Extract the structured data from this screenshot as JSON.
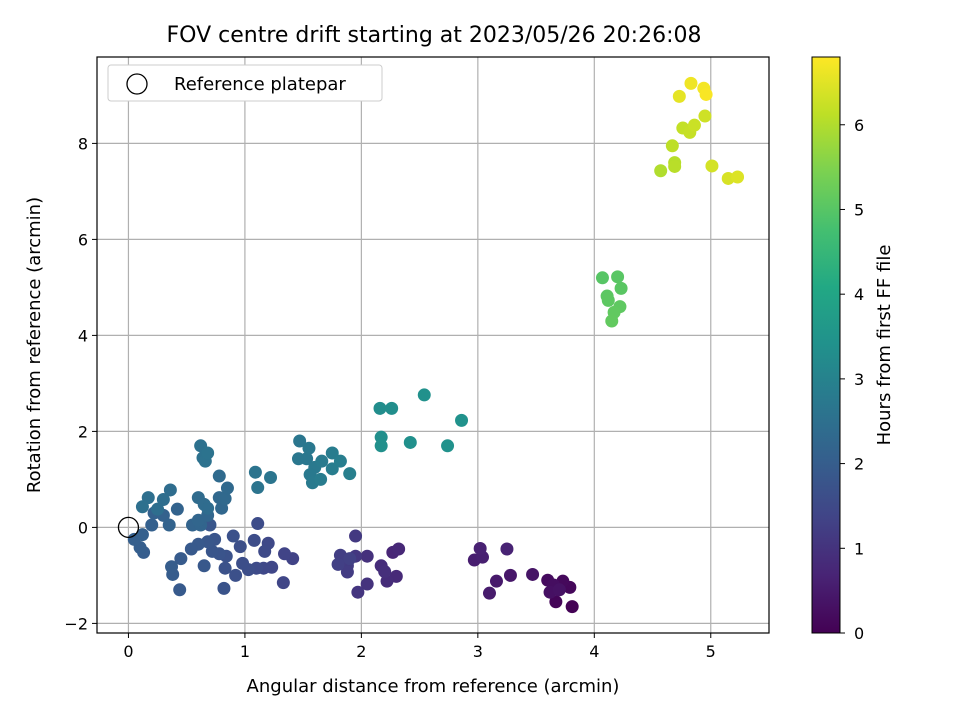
{
  "chart_data": {
    "type": "scatter",
    "title": "FOV centre drift starting at 2023/05/26 20:26:08",
    "xlabel": "Angular distance from reference (arcmin)",
    "ylabel": "Rotation from reference (arcmin)",
    "xlim": [
      -0.27,
      5.5
    ],
    "ylim": [
      -2.2,
      9.8
    ],
    "xticks": [
      0,
      1,
      2,
      3,
      4,
      5
    ],
    "yticks": [
      -2,
      0,
      2,
      4,
      6,
      8
    ],
    "grid": true,
    "legend": {
      "label": "Reference platepar",
      "position": "top-left"
    },
    "reference_point": {
      "x": 0,
      "y": 0
    },
    "colorbar": {
      "label": "Hours from first FF file",
      "colormap": "viridis",
      "range": [
        0,
        6.8
      ],
      "ticks": [
        0,
        1,
        2,
        3,
        4,
        5,
        6
      ]
    },
    "points": [
      {
        "x": 3.81,
        "y": -1.65,
        "c": 0.03
      },
      {
        "x": 3.67,
        "y": -1.55,
        "c": 0.08
      },
      {
        "x": 3.79,
        "y": -1.25,
        "c": 0.12
      },
      {
        "x": 3.73,
        "y": -1.12,
        "c": 0.15
      },
      {
        "x": 3.6,
        "y": -1.1,
        "c": 0.2
      },
      {
        "x": 3.65,
        "y": -1.2,
        "c": 0.25
      },
      {
        "x": 3.62,
        "y": -1.35,
        "c": 0.3
      },
      {
        "x": 3.7,
        "y": -1.3,
        "c": 0.33
      },
      {
        "x": 3.47,
        "y": -0.98,
        "c": 0.38
      },
      {
        "x": 3.28,
        "y": -1.0,
        "c": 0.43
      },
      {
        "x": 3.16,
        "y": -1.12,
        "c": 0.47
      },
      {
        "x": 3.1,
        "y": -1.37,
        "c": 0.5
      },
      {
        "x": 2.97,
        "y": -0.68,
        "c": 0.55
      },
      {
        "x": 3.04,
        "y": -0.62,
        "c": 0.58
      },
      {
        "x": 3.02,
        "y": -0.44,
        "c": 0.62
      },
      {
        "x": 3.25,
        "y": -0.45,
        "c": 0.66
      },
      {
        "x": 2.27,
        "y": -0.52,
        "c": 0.72
      },
      {
        "x": 2.32,
        "y": -0.45,
        "c": 0.76
      },
      {
        "x": 2.3,
        "y": -1.02,
        "c": 0.8
      },
      {
        "x": 2.22,
        "y": -1.12,
        "c": 0.84
      },
      {
        "x": 2.17,
        "y": -0.8,
        "c": 0.88
      },
      {
        "x": 2.2,
        "y": -0.92,
        "c": 0.92
      },
      {
        "x": 2.05,
        "y": -0.6,
        "c": 0.96
      },
      {
        "x": 2.05,
        "y": -1.18,
        "c": 1.0
      },
      {
        "x": 1.97,
        "y": -1.35,
        "c": 1.04
      },
      {
        "x": 1.95,
        "y": -0.6,
        "c": 1.08
      },
      {
        "x": 1.95,
        "y": -0.18,
        "c": 1.12
      },
      {
        "x": 1.88,
        "y": -0.8,
        "c": 1.16
      },
      {
        "x": 1.88,
        "y": -0.93,
        "c": 1.2
      },
      {
        "x": 1.82,
        "y": -0.58,
        "c": 1.24
      },
      {
        "x": 1.8,
        "y": -0.77,
        "c": 1.27
      },
      {
        "x": 1.9,
        "y": -0.65,
        "c": 1.3
      },
      {
        "x": 1.41,
        "y": -0.65,
        "c": 1.34
      },
      {
        "x": 1.34,
        "y": -0.55,
        "c": 1.37
      },
      {
        "x": 1.33,
        "y": -1.15,
        "c": 1.4
      },
      {
        "x": 1.23,
        "y": -0.83,
        "c": 1.43
      },
      {
        "x": 1.16,
        "y": -0.85,
        "c": 1.46
      },
      {
        "x": 1.2,
        "y": -0.33,
        "c": 1.49
      },
      {
        "x": 1.17,
        "y": -0.5,
        "c": 1.52
      },
      {
        "x": 1.1,
        "y": -0.85,
        "c": 1.54
      },
      {
        "x": 1.11,
        "y": 0.08,
        "c": 1.56
      },
      {
        "x": 1.08,
        "y": -0.27,
        "c": 1.58
      },
      {
        "x": 1.03,
        "y": -0.88,
        "c": 1.6
      },
      {
        "x": 0.98,
        "y": -0.75,
        "c": 1.62
      },
      {
        "x": 0.96,
        "y": -0.4,
        "c": 1.64
      },
      {
        "x": 0.92,
        "y": -1.0,
        "c": 1.66
      },
      {
        "x": 0.9,
        "y": -0.18,
        "c": 1.68
      },
      {
        "x": 0.84,
        "y": -0.6,
        "c": 1.7
      },
      {
        "x": 0.83,
        "y": -0.85,
        "c": 1.72
      },
      {
        "x": 0.82,
        "y": -1.27,
        "c": 1.74
      },
      {
        "x": 0.78,
        "y": -0.55,
        "c": 1.76
      },
      {
        "x": 0.74,
        "y": -0.25,
        "c": 1.78
      },
      {
        "x": 0.72,
        "y": -0.5,
        "c": 1.8
      },
      {
        "x": 0.7,
        "y": 0.05,
        "c": 1.82
      },
      {
        "x": 0.68,
        "y": -0.3,
        "c": 1.84
      },
      {
        "x": 0.65,
        "y": -0.8,
        "c": 1.86
      },
      {
        "x": 0.6,
        "y": -0.35,
        "c": 1.88
      },
      {
        "x": 0.54,
        "y": -0.45,
        "c": 1.9
      },
      {
        "x": 0.44,
        "y": -1.3,
        "c": 1.92
      },
      {
        "x": 0.45,
        "y": -0.65,
        "c": 1.94
      },
      {
        "x": 0.38,
        "y": -0.98,
        "c": 1.96
      },
      {
        "x": 0.37,
        "y": -0.82,
        "c": 1.98
      },
      {
        "x": 0.13,
        "y": -0.52,
        "c": 2.0
      },
      {
        "x": 0.1,
        "y": -0.42,
        "c": 2.02
      },
      {
        "x": 0.05,
        "y": -0.25,
        "c": 2.04
      },
      {
        "x": 0.12,
        "y": -0.15,
        "c": 2.06
      },
      {
        "x": 0.2,
        "y": 0.05,
        "c": 2.08
      },
      {
        "x": 0.22,
        "y": 0.3,
        "c": 2.1
      },
      {
        "x": 0.3,
        "y": 0.25,
        "c": 2.12
      },
      {
        "x": 0.35,
        "y": 0.05,
        "c": 2.14
      },
      {
        "x": 0.42,
        "y": 0.38,
        "c": 2.16
      },
      {
        "x": 0.55,
        "y": 0.05,
        "c": 2.18
      },
      {
        "x": 0.62,
        "y": 0.05,
        "c": 2.2
      },
      {
        "x": 0.6,
        "y": 0.15,
        "c": 2.22
      },
      {
        "x": 0.68,
        "y": 0.25,
        "c": 2.24
      },
      {
        "x": 0.8,
        "y": 0.4,
        "c": 2.26
      },
      {
        "x": 0.78,
        "y": 0.62,
        "c": 2.28
      },
      {
        "x": 0.83,
        "y": 0.6,
        "c": 2.3
      },
      {
        "x": 0.85,
        "y": 0.82,
        "c": 2.32
      },
      {
        "x": 0.78,
        "y": 1.07,
        "c": 2.34
      },
      {
        "x": 0.6,
        "y": 0.62,
        "c": 2.36
      },
      {
        "x": 0.65,
        "y": 0.48,
        "c": 2.38
      },
      {
        "x": 0.68,
        "y": 0.4,
        "c": 2.4
      },
      {
        "x": 0.36,
        "y": 0.78,
        "c": 2.42
      },
      {
        "x": 0.3,
        "y": 0.58,
        "c": 2.44
      },
      {
        "x": 0.25,
        "y": 0.38,
        "c": 2.46
      },
      {
        "x": 0.17,
        "y": 0.62,
        "c": 2.48
      },
      {
        "x": 0.12,
        "y": 0.43,
        "c": 2.5
      },
      {
        "x": 0.62,
        "y": 1.7,
        "c": 2.52
      },
      {
        "x": 0.64,
        "y": 1.45,
        "c": 2.54
      },
      {
        "x": 0.66,
        "y": 1.38,
        "c": 2.56
      },
      {
        "x": 0.68,
        "y": 1.55,
        "c": 2.58
      },
      {
        "x": 1.09,
        "y": 1.15,
        "c": 2.6
      },
      {
        "x": 1.11,
        "y": 0.83,
        "c": 2.62
      },
      {
        "x": 1.22,
        "y": 1.04,
        "c": 2.64
      },
      {
        "x": 1.47,
        "y": 1.8,
        "c": 2.66
      },
      {
        "x": 1.46,
        "y": 1.43,
        "c": 2.68
      },
      {
        "x": 1.53,
        "y": 1.43,
        "c": 2.7
      },
      {
        "x": 1.55,
        "y": 1.65,
        "c": 2.72
      },
      {
        "x": 1.6,
        "y": 1.25,
        "c": 2.74
      },
      {
        "x": 1.56,
        "y": 1.1,
        "c": 2.76
      },
      {
        "x": 1.58,
        "y": 0.93,
        "c": 2.78
      },
      {
        "x": 1.66,
        "y": 1.38,
        "c": 2.8
      },
      {
        "x": 1.65,
        "y": 1.0,
        "c": 2.82
      },
      {
        "x": 1.75,
        "y": 1.55,
        "c": 2.84
      },
      {
        "x": 1.75,
        "y": 1.22,
        "c": 2.86
      },
      {
        "x": 1.82,
        "y": 1.38,
        "c": 2.88
      },
      {
        "x": 1.9,
        "y": 1.12,
        "c": 2.9
      },
      {
        "x": 2.16,
        "y": 2.48,
        "c": 3.3
      },
      {
        "x": 2.26,
        "y": 2.48,
        "c": 3.32
      },
      {
        "x": 2.17,
        "y": 1.88,
        "c": 3.34
      },
      {
        "x": 2.17,
        "y": 1.7,
        "c": 3.36
      },
      {
        "x": 2.42,
        "y": 1.77,
        "c": 3.38
      },
      {
        "x": 2.54,
        "y": 2.76,
        "c": 3.4
      },
      {
        "x": 2.74,
        "y": 1.7,
        "c": 3.42
      },
      {
        "x": 2.86,
        "y": 2.23,
        "c": 3.44
      },
      {
        "x": 4.07,
        "y": 5.2,
        "c": 5.0
      },
      {
        "x": 4.2,
        "y": 5.22,
        "c": 5.02
      },
      {
        "x": 4.23,
        "y": 4.98,
        "c": 5.04
      },
      {
        "x": 4.11,
        "y": 4.82,
        "c": 5.06
      },
      {
        "x": 4.12,
        "y": 4.73,
        "c": 5.08
      },
      {
        "x": 4.22,
        "y": 4.6,
        "c": 5.1
      },
      {
        "x": 4.17,
        "y": 4.48,
        "c": 5.12
      },
      {
        "x": 4.15,
        "y": 4.3,
        "c": 5.14
      },
      {
        "x": 4.57,
        "y": 7.43,
        "c": 6.0
      },
      {
        "x": 4.69,
        "y": 7.6,
        "c": 6.05
      },
      {
        "x": 4.69,
        "y": 7.52,
        "c": 6.08
      },
      {
        "x": 4.67,
        "y": 7.95,
        "c": 6.12
      },
      {
        "x": 4.76,
        "y": 8.32,
        "c": 6.18
      },
      {
        "x": 4.82,
        "y": 8.23,
        "c": 6.22
      },
      {
        "x": 4.86,
        "y": 8.38,
        "c": 6.26
      },
      {
        "x": 4.95,
        "y": 8.57,
        "c": 6.3
      },
      {
        "x": 5.01,
        "y": 7.53,
        "c": 6.35
      },
      {
        "x": 5.15,
        "y": 7.27,
        "c": 6.4
      },
      {
        "x": 5.23,
        "y": 7.3,
        "c": 6.45
      },
      {
        "x": 4.73,
        "y": 8.98,
        "c": 6.55
      },
      {
        "x": 4.83,
        "y": 9.25,
        "c": 6.65
      },
      {
        "x": 4.94,
        "y": 9.15,
        "c": 6.7
      },
      {
        "x": 4.96,
        "y": 9.02,
        "c": 6.75
      }
    ]
  }
}
